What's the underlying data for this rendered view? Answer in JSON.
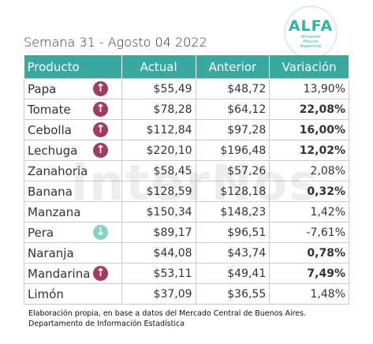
{
  "header": {
    "title": "Semana 31 - Agosto 04 2022",
    "logo": {
      "name": "ALFA",
      "tagline": "Alimentos Frescos Argentinos"
    }
  },
  "watermark": "interNos",
  "table": {
    "columns": [
      "Producto",
      "Actual",
      "Anterior",
      "Variación"
    ],
    "rows": [
      [
        "Papa",
        "$55,49",
        "$48,72",
        "13,90%"
      ],
      [
        "Tomate",
        "$78,28",
        "$64,12",
        "22,08%"
      ],
      [
        "Cebolla",
        "$112,84",
        "$97,28",
        "16,00%"
      ],
      [
        "Lechuga",
        "$220,10",
        "$196,48",
        "12,02%"
      ],
      [
        "Zanahoria",
        "$58,45",
        "$57,26",
        "2,08%"
      ],
      [
        "Banana",
        "$128,59",
        "$128,18",
        "0,32%"
      ],
      [
        "Manzana",
        "$150,34",
        "$148,23",
        "1,42%"
      ],
      [
        "Pera",
        "$89,17",
        "$96,51",
        "-7,61%"
      ],
      [
        "Naranja",
        "$44,08",
        "$43,74",
        "0,78%"
      ],
      [
        "Mandarina",
        "$53,11",
        "$49,41",
        "7,49%"
      ],
      [
        "Limón",
        "$37,09",
        "$36,55",
        "1,48%"
      ]
    ],
    "trend": [
      "up",
      "up",
      "up",
      "up",
      null,
      null,
      null,
      "down",
      null,
      "up",
      null
    ],
    "bold": [
      false,
      true,
      true,
      true,
      false,
      true,
      false,
      false,
      true,
      true,
      false
    ]
  },
  "footnote": [
    "Elaboración propia, en base a datos del Mercado Central de Buenos Aires.",
    "Departamento de Información Estadística"
  ]
}
